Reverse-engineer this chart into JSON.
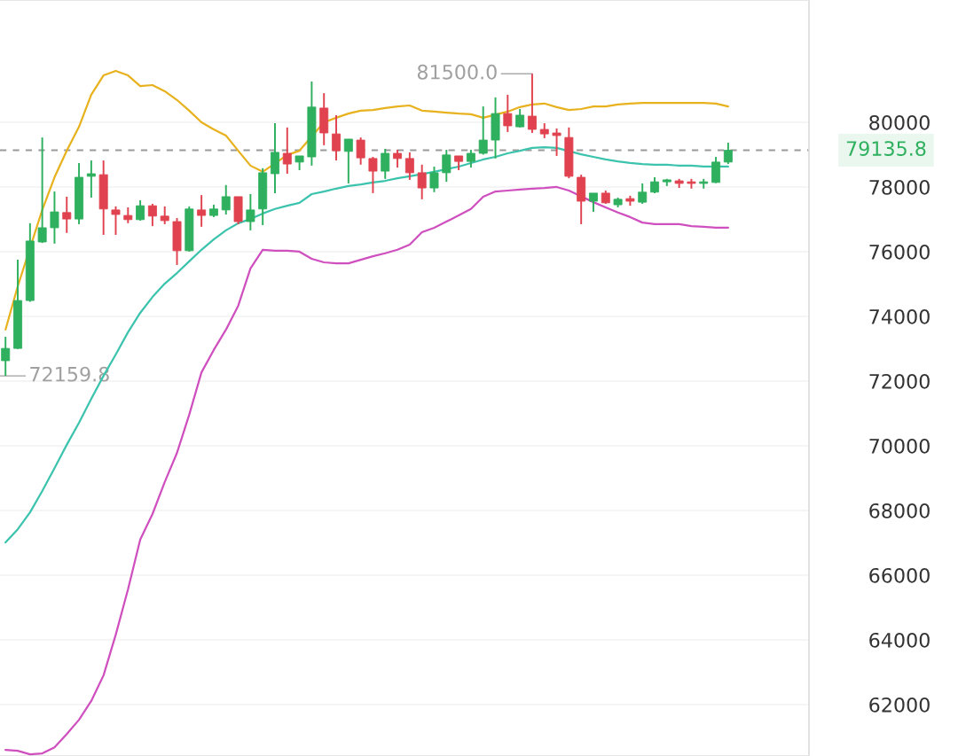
{
  "chart_data": {
    "type": "candlestick",
    "categories": [
      null,
      null,
      null,
      null,
      null,
      null,
      null,
      null,
      null,
      null,
      null,
      null,
      null,
      null,
      null,
      null,
      null,
      null,
      null,
      null,
      null,
      null,
      null,
      null,
      null,
      null,
      null,
      null,
      null,
      null,
      null,
      null,
      null,
      null,
      null,
      null,
      null,
      null,
      null,
      null,
      null,
      null,
      null,
      null,
      null,
      null,
      null,
      null,
      null,
      null,
      null,
      null,
      null,
      null,
      null,
      null,
      null,
      null,
      null,
      null
    ],
    "ohlc": [
      [
        72630,
        73370,
        72159.8,
        73010
      ],
      [
        73010,
        75750,
        72990,
        74490
      ],
      [
        74490,
        76880,
        74450,
        76330
      ],
      [
        76300,
        79530,
        76270,
        76740
      ],
      [
        76740,
        77860,
        76250,
        77230
      ],
      [
        77210,
        77700,
        76580,
        77010
      ],
      [
        77010,
        78740,
        76850,
        78300
      ],
      [
        78330,
        78820,
        77670,
        78410
      ],
      [
        78380,
        78820,
        76520,
        77320
      ],
      [
        77290,
        77400,
        76520,
        77150
      ],
      [
        77120,
        77370,
        76880,
        76990
      ],
      [
        76990,
        77590,
        76960,
        77420
      ],
      [
        77420,
        77480,
        76790,
        77100
      ],
      [
        77100,
        77400,
        76850,
        76960
      ],
      [
        76930,
        77040,
        75590,
        76030
      ],
      [
        76030,
        77400,
        76000,
        77320
      ],
      [
        77290,
        77750,
        76770,
        77120
      ],
      [
        77120,
        77450,
        77070,
        77320
      ],
      [
        77290,
        78060,
        77150,
        77700
      ],
      [
        77700,
        77700,
        76850,
        76930
      ],
      [
        76930,
        77780,
        76660,
        77290
      ],
      [
        77320,
        78580,
        76820,
        78440
      ],
      [
        78410,
        79970,
        77810,
        79070
      ],
      [
        79040,
        79840,
        78410,
        78710
      ],
      [
        78770,
        78960,
        78520,
        78960
      ],
      [
        78930,
        81260,
        78660,
        80470
      ],
      [
        80440,
        80900,
        79290,
        79670
      ],
      [
        79640,
        80220,
        78820,
        79120
      ],
      [
        79100,
        79480,
        78110,
        79480
      ],
      [
        79450,
        79530,
        78690,
        78900
      ],
      [
        78880,
        78930,
        77810,
        78490
      ],
      [
        78490,
        79180,
        78250,
        79040
      ],
      [
        79040,
        79150,
        78600,
        78880
      ],
      [
        78880,
        79070,
        78220,
        78440
      ],
      [
        78440,
        78690,
        77620,
        77970
      ],
      [
        77970,
        78630,
        77840,
        78440
      ],
      [
        78440,
        79150,
        78160,
        78990
      ],
      [
        78960,
        78960,
        78520,
        78790
      ],
      [
        78790,
        79150,
        78600,
        79040
      ],
      [
        79040,
        80490,
        79000,
        79450
      ],
      [
        79450,
        80770,
        78880,
        80270
      ],
      [
        80270,
        80850,
        79700,
        79890
      ],
      [
        79860,
        80410,
        79840,
        80220
      ],
      [
        80190,
        81500,
        79670,
        79780
      ],
      [
        79780,
        79970,
        79510,
        79640
      ],
      [
        79670,
        79810,
        78960,
        79590
      ],
      [
        79530,
        79840,
        78270,
        78330
      ],
      [
        78300,
        78380,
        76850,
        77560
      ],
      [
        77560,
        77810,
        77230,
        77810
      ],
      [
        77810,
        77890,
        77480,
        77510
      ],
      [
        77450,
        77670,
        77370,
        77620
      ],
      [
        77640,
        77730,
        77420,
        77560
      ],
      [
        77530,
        78110,
        77480,
        77840
      ],
      [
        77840,
        78300,
        77810,
        78160
      ],
      [
        78160,
        78250,
        78030,
        78220
      ],
      [
        78190,
        78250,
        77970,
        78110
      ],
      [
        78160,
        78250,
        77950,
        78110
      ],
      [
        78110,
        78250,
        77950,
        78160
      ],
      [
        78140,
        78930,
        78120,
        78770
      ],
      [
        78770,
        79370,
        78710,
        79135.8
      ]
    ],
    "colors": [
      "#2eb05e",
      "#2eb05e",
      "#2eb05e",
      "#2eb05e",
      "#2eb05e",
      "#e0434f",
      "#2eb05e",
      "#2eb05e",
      "#e0434f",
      "#e0434f",
      "#e0434f",
      "#2eb05e",
      "#e0434f",
      "#e0434f",
      "#e0434f",
      "#2eb05e",
      "#e0434f",
      "#2eb05e",
      "#2eb05e",
      "#e0434f",
      "#2eb05e",
      "#2eb05e",
      "#2eb05e",
      "#e0434f",
      "#2eb05e",
      "#2eb05e",
      "#e0434f",
      "#e0434f",
      "#2eb05e",
      "#e0434f",
      "#e0434f",
      "#2eb05e",
      "#e0434f",
      "#e0434f",
      "#e0434f",
      "#2eb05e",
      "#2eb05e",
      "#e0434f",
      "#2eb05e",
      "#2eb05e",
      "#2eb05e",
      "#e0434f",
      "#2eb05e",
      "#e0434f",
      "#e0434f",
      "#e0434f",
      "#e0434f",
      "#e0434f",
      "#2eb05e",
      "#e0434f",
      "#2eb05e",
      "#e0434f",
      "#2eb05e",
      "#2eb05e",
      "#2eb05e",
      "#e0434f",
      "#e0434f",
      "#2eb05e",
      "#2eb05e",
      "#2eb05e"
    ],
    "series": [
      {
        "type": "line",
        "color": "#e8b21e",
        "values": [
          73590,
          74930,
          null,
          77290,
          78300,
          79120,
          79860,
          80850,
          81450,
          81590,
          81450,
          81120,
          81150,
          80960,
          80690,
          80360,
          80000,
          79780,
          79590,
          79120,
          78660,
          78470,
          null,
          78990,
          79120,
          null,
          80000,
          80140,
          80270,
          80360,
          80380,
          80440,
          80490,
          80520,
          80360,
          80330,
          80300,
          80270,
          80250,
          80140,
          null,
          80330,
          80470,
          80550,
          80580,
          80470,
          80380,
          80410,
          80490,
          80490,
          80550,
          80580,
          80600,
          80600,
          80600,
          80600,
          80600,
          80600,
          80580,
          80490
        ]
      },
      {
        "type": "line",
        "color": "#3cc3ad",
        "values": [
          67010,
          67420,
          67940,
          68600,
          69310,
          70030,
          70710,
          71450,
          72160,
          72820,
          73510,
          74110,
          74600,
          75010,
          75340,
          75700,
          76060,
          76380,
          76660,
          76880,
          77010,
          77180,
          77320,
          77420,
          77510,
          77780,
          77860,
          77950,
          78030,
          78080,
          78140,
          78190,
          78270,
          78330,
          null,
          78470,
          null,
          78630,
          78740,
          78850,
          78930,
          79040,
          79120,
          79210,
          79230,
          79210,
          null,
          79010,
          78930,
          78850,
          78790,
          78740,
          78710,
          78690,
          78690,
          78660,
          78660,
          78630,
          null,
          78630
        ]
      },
      {
        "type": "line",
        "color": "#cf4fbf",
        "values": [
          60600,
          60570,
          60460,
          60490,
          60680,
          61090,
          61530,
          62110,
          62900,
          64160,
          65560,
          67100,
          67890,
          68880,
          69780,
          70960,
          72270,
          72960,
          73590,
          74330,
          75480,
          76060,
          76030,
          76030,
          76000,
          75780,
          75670,
          75640,
          75640,
          75750,
          75860,
          75950,
          76060,
          76220,
          76600,
          76740,
          76930,
          77120,
          77320,
          77700,
          77860,
          77890,
          77920,
          77950,
          77970,
          78000,
          77890,
          null,
          77530,
          77370,
          77210,
          77070,
          76900,
          76850,
          76850,
          76850,
          76790,
          76770,
          76740,
          76740
        ]
      }
    ],
    "ylim": [
      60410,
      83780
    ],
    "yticks": [
      62000,
      64000,
      66000,
      68000,
      70000,
      72000,
      74000,
      76000,
      78000,
      80000
    ],
    "grid": "y",
    "ref_lines": [
      {
        "axis": "y",
        "value": 79135.8,
        "label": "79135.8",
        "color": "#9a9a9a",
        "line_style": "dashed"
      }
    ],
    "annotations": [
      "81500.0",
      "72159.8"
    ]
  }
}
